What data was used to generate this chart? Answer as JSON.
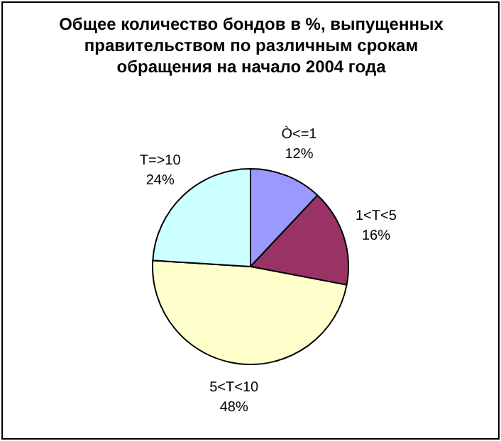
{
  "chart_data": {
    "type": "pie",
    "title": "Общее количество бондов в %, выпущенных правительством по различным срокам обращения на начало 2004 года",
    "categories": [
      "Ò<=1",
      "1<T<5",
      "5<T<10",
      "T=>10"
    ],
    "values": [
      12,
      16,
      48,
      24
    ],
    "value_labels": [
      "12%",
      "16%",
      "48%",
      "24%"
    ],
    "colors": [
      "#9999ff",
      "#993366",
      "#ffffcc",
      "#ccffff"
    ],
    "legend": false
  }
}
